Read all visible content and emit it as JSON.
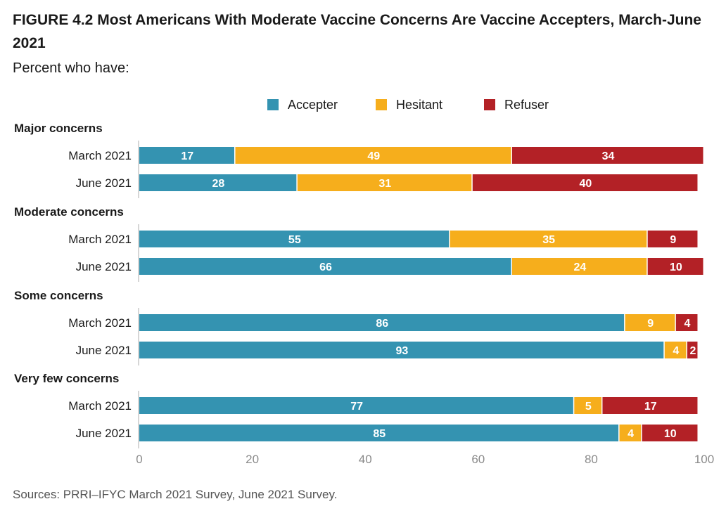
{
  "figure": {
    "title": "FIGURE 4.2  Most Americans With Moderate Vaccine Concerns Are Vaccine Accepters, March-June 2021",
    "subtitle": "Percent who have:",
    "source": "Sources: PRRI–IFYC March 2021 Survey, June 2021 Survey."
  },
  "chart_data": {
    "type": "bar",
    "orientation": "horizontal",
    "stacked": true,
    "xlim": [
      0,
      100
    ],
    "x_ticks": [
      0,
      20,
      40,
      60,
      80,
      100
    ],
    "grid": false,
    "legend_position": "top",
    "legend": [
      {
        "name": "Accepter",
        "color": "#3493b1"
      },
      {
        "name": "Hesitant",
        "color": "#f6ae1c"
      },
      {
        "name": "Refuser",
        "color": "#b32126"
      }
    ],
    "groups": [
      {
        "label": "Major concerns",
        "rows": [
          {
            "label": "March 2021",
            "values": [
              17,
              49,
              34
            ]
          },
          {
            "label": "June 2021",
            "values": [
              28,
              31,
              40
            ]
          }
        ]
      },
      {
        "label": "Moderate concerns",
        "rows": [
          {
            "label": "March 2021",
            "values": [
              55,
              35,
              9
            ]
          },
          {
            "label": "June 2021",
            "values": [
              66,
              24,
              10
            ]
          }
        ]
      },
      {
        "label": "Some concerns",
        "rows": [
          {
            "label": "March 2021",
            "values": [
              86,
              9,
              4
            ]
          },
          {
            "label": "June 2021",
            "values": [
              93,
              4,
              2
            ]
          }
        ]
      },
      {
        "label": "Very few concerns",
        "rows": [
          {
            "label": "March 2021",
            "values": [
              77,
              5,
              17
            ]
          },
          {
            "label": "June 2021",
            "values": [
              85,
              4,
              10
            ]
          }
        ]
      }
    ]
  }
}
